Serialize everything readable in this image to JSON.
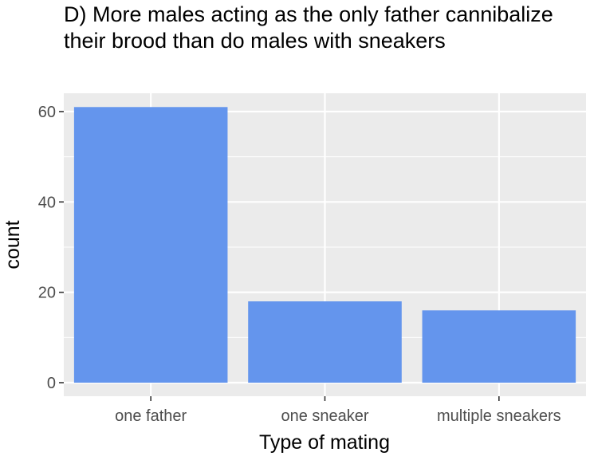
{
  "chart_data": {
    "type": "bar",
    "title": "D) More males acting as the only father cannibalize their brood than do males with sneakers",
    "xlabel": "Type of mating",
    "ylabel": "count",
    "categories": [
      "one father",
      "one sneaker",
      "multiple sneakers"
    ],
    "values": [
      61,
      18,
      16
    ],
    "ylim": [
      0,
      64.05
    ],
    "yticks": [
      0,
      20,
      40,
      60
    ],
    "bar_color": "#6495ED",
    "panel_background": "#EBEBEB",
    "grid": true
  }
}
